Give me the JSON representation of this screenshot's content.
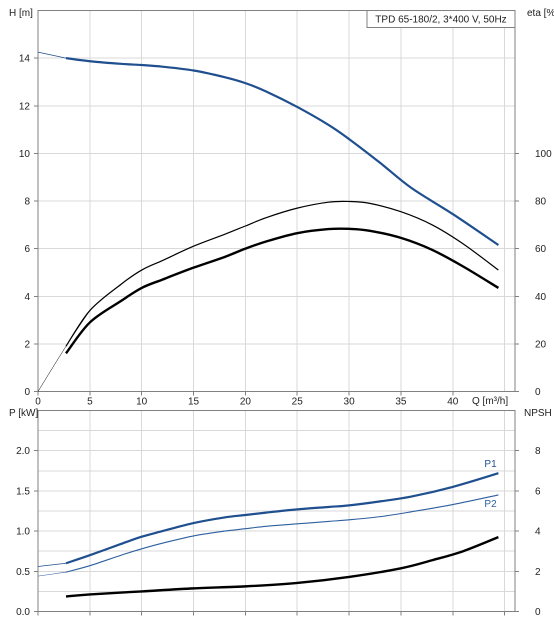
{
  "chart_data": [
    {
      "type": "line",
      "title": "TPD 65-180/2, 3*400 V, 50Hz",
      "xlabel": "Q [m³/h]",
      "ylabel": "H [m]",
      "ylabel_right": "eta [%]",
      "xlim": [
        0,
        46
      ],
      "ylim": [
        0,
        16
      ],
      "ylim_right": [
        0,
        160
      ],
      "x_ticks": [
        "0",
        "5",
        "10",
        "15",
        "20",
        "25",
        "30",
        "35",
        "40"
      ],
      "y_ticks": [
        "0",
        "2",
        "4",
        "6",
        "8",
        "10",
        "12",
        "14"
      ],
      "y_ticks_right": [
        "0",
        "20",
        "40",
        "60",
        "80",
        "100"
      ],
      "grid": true,
      "colors": {
        "head": "#1f4f8f",
        "efficiency": "#000000"
      },
      "series": [
        {
          "name": "",
          "key": "head",
          "axis": "left",
          "x": [
            0,
            2.7,
            5,
            8,
            10,
            12,
            15,
            18,
            20,
            22,
            25,
            28,
            30,
            33,
            36,
            40,
            44.4
          ],
          "y": [
            14.25,
            14.0,
            13.87,
            13.76,
            13.71,
            13.64,
            13.48,
            13.2,
            12.95,
            12.6,
            11.95,
            11.2,
            10.6,
            9.6,
            8.55,
            7.45,
            6.15
          ]
        },
        {
          "name": "",
          "key": "efficiency_upper",
          "axis": "right",
          "x": [
            0,
            2.7,
            5,
            8,
            10,
            12,
            15,
            18,
            20,
            22,
            25,
            28,
            30,
            32,
            35,
            38,
            41,
            44.4
          ],
          "y": [
            0,
            19,
            34,
            45,
            51,
            55,
            61,
            66,
            69.5,
            73,
            77,
            79.5,
            79.8,
            79,
            75.5,
            70,
            62,
            51
          ]
        },
        {
          "name": "",
          "key": "efficiency_lower",
          "axis": "right",
          "x": [
            2.7,
            5,
            8,
            10,
            12,
            15,
            18,
            20,
            22,
            25,
            28,
            30,
            32,
            35,
            38,
            41,
            44.4
          ],
          "y": [
            16,
            29,
            38,
            43.5,
            47,
            52,
            56.5,
            60,
            63,
            66.5,
            68.2,
            68.3,
            67.5,
            64.5,
            59.5,
            52.5,
            43.5
          ]
        }
      ]
    },
    {
      "type": "line",
      "title": "",
      "xlabel": "",
      "ylabel": "P [kW]",
      "ylabel_right": "NPSH [m]",
      "xlim": [
        0,
        46
      ],
      "ylim": [
        0,
        2.5
      ],
      "ylim_right": [
        0,
        10
      ],
      "x_ticks": [],
      "y_ticks": [
        "0.0",
        "0.5",
        "1.0",
        "1.5",
        "2.0"
      ],
      "y_ticks_right": [
        "0",
        "2",
        "4",
        "6",
        "8"
      ],
      "grid": true,
      "colors": {
        "p1": "#1f4f8f",
        "p2": "#2e5f9f",
        "npsh": "#000000"
      },
      "series": [
        {
          "name": "P1",
          "key": "p1",
          "axis": "left",
          "x": [
            0,
            2.7,
            5,
            8,
            10,
            12,
            15,
            18,
            20,
            22,
            25,
            28,
            30,
            33,
            36,
            40,
            44.4
          ],
          "y": [
            0.56,
            0.6,
            0.7,
            0.84,
            0.93,
            1.0,
            1.1,
            1.17,
            1.2,
            1.23,
            1.27,
            1.3,
            1.32,
            1.37,
            1.43,
            1.55,
            1.72
          ]
        },
        {
          "name": "P2",
          "key": "p2",
          "axis": "left",
          "x": [
            0,
            2.7,
            5,
            8,
            10,
            12,
            15,
            18,
            20,
            22,
            25,
            28,
            30,
            33,
            36,
            40,
            44.4
          ],
          "y": [
            0.44,
            0.49,
            0.57,
            0.7,
            0.78,
            0.85,
            0.94,
            1.0,
            1.03,
            1.06,
            1.09,
            1.12,
            1.14,
            1.18,
            1.24,
            1.33,
            1.45
          ]
        },
        {
          "name": "",
          "key": "npsh",
          "axis": "right",
          "x": [
            2.7,
            5,
            10,
            15,
            20,
            25,
            30,
            35,
            38,
            41,
            44.4
          ],
          "y": [
            0.75,
            0.85,
            1.0,
            1.15,
            1.25,
            1.42,
            1.72,
            2.15,
            2.55,
            3.0,
            3.7
          ]
        }
      ]
    }
  ]
}
